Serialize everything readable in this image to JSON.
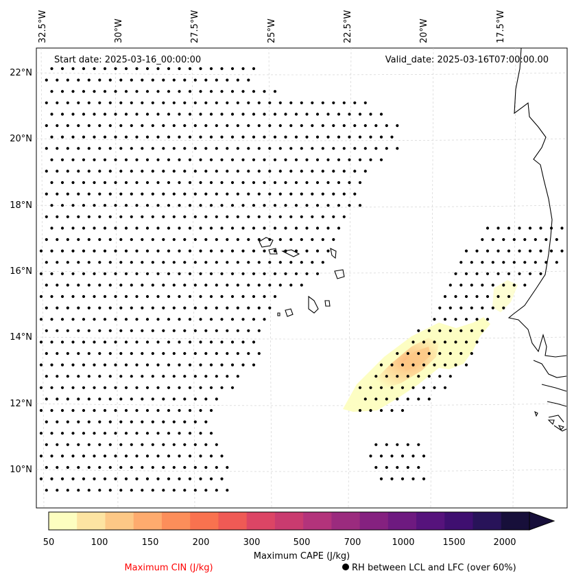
{
  "map": {
    "start_date_text": "Start date: 2025-03-16_00:00:00",
    "valid_date_text": "Valid_date: 2025-03-16T07:00:00.00",
    "lon_labels": [
      "32.5°W",
      "30°W",
      "27.5°W",
      "25°W",
      "22.5°W",
      "20°W",
      "17.5°W"
    ],
    "lat_labels": [
      "22°N",
      "20°N",
      "18°N",
      "16°N",
      "14°N",
      "12°N",
      "10°N"
    ],
    "gridlines": true
  },
  "colorbar": {
    "label": "Maximum CAPE (J/kg)",
    "tick_labels": [
      "50",
      "100",
      "150",
      "200",
      "300",
      "500",
      "700",
      "1000",
      "1500",
      "2000"
    ],
    "colors": [
      "#fdfec0",
      "#fde4a2",
      "#fdc886",
      "#feab6e",
      "#fc8e5a",
      "#f9724f",
      "#ef5a55",
      "#dc4565",
      "#c93b6f",
      "#b3337b",
      "#9b2b7e",
      "#852180",
      "#6e1a80",
      "#56137c",
      "#3f0f70",
      "#281359",
      "#170f3a"
    ],
    "extend": "max"
  },
  "legend": {
    "cin_label": "Maximum CIN (J/kg)",
    "cin_color": "#ff0000",
    "rh_label": "RH between LCL and LFC (over 60%)",
    "rh_marker": "filled-circle"
  }
}
